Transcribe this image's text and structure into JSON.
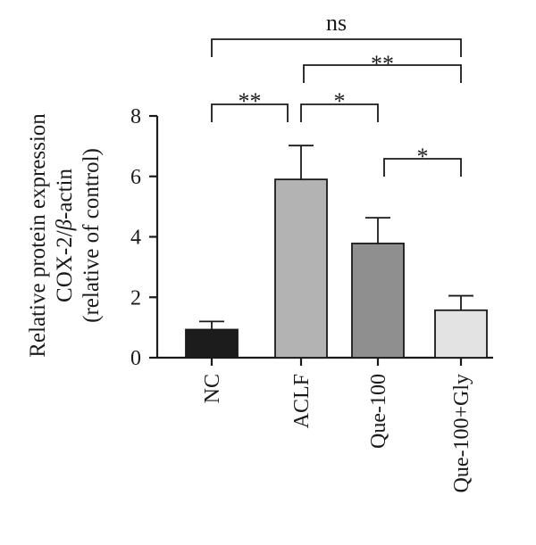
{
  "chart_data": {
    "type": "bar",
    "ylabel_lines": [
      "Relative protein expression",
      "COX-2/β-actin",
      "(relative of control)"
    ],
    "xlabel": "",
    "ylim": [
      0,
      8
    ],
    "yticks": [
      0,
      2,
      4,
      6,
      8
    ],
    "categories": [
      "NC",
      "ACLF",
      "Que-100",
      "Que-100+Gly"
    ],
    "values": [
      0.93,
      5.9,
      3.78,
      1.57
    ],
    "errors": [
      0.27,
      1.12,
      0.85,
      0.48
    ],
    "colors": [
      "#1c1c1c",
      "#b3b3b3",
      "#8f8f8f",
      "#e3e3e3"
    ],
    "grid": false,
    "significance": [
      {
        "from": 0,
        "to": 3,
        "label": "ns"
      },
      {
        "from": 1,
        "to": 3,
        "label": "**"
      },
      {
        "from": 0,
        "to": 1,
        "label": "**"
      },
      {
        "from": 1,
        "to": 2,
        "label": "*"
      },
      {
        "from": 2,
        "to": 3,
        "label": "*"
      }
    ]
  }
}
